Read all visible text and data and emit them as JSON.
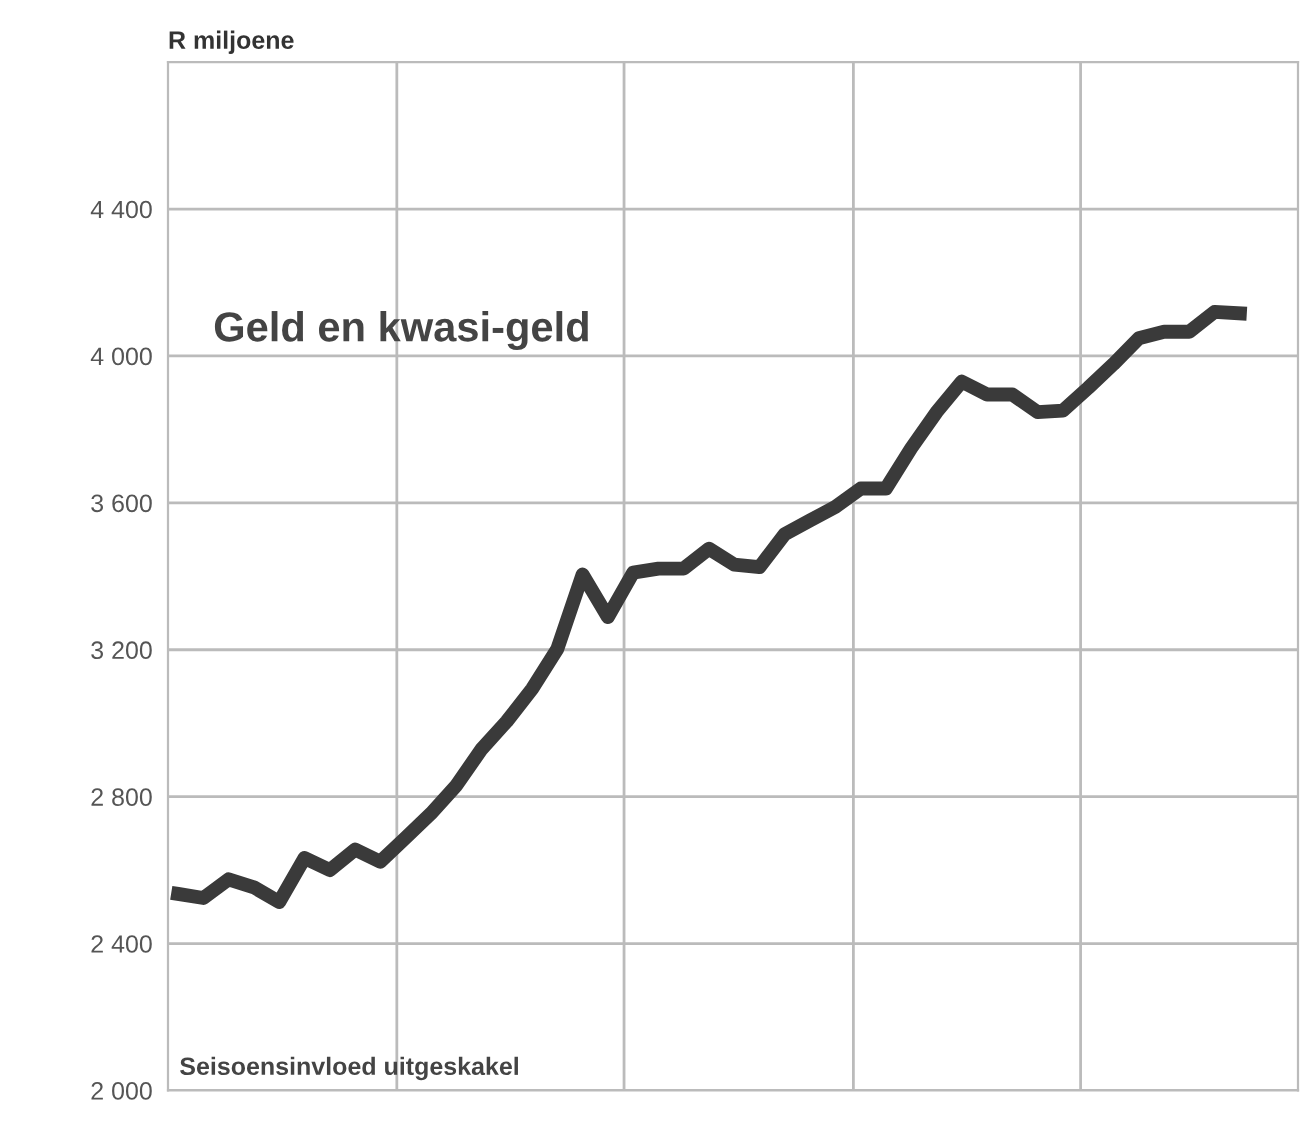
{
  "chart_data": {
    "type": "line",
    "ylabel": "R miljoene",
    "annotations": [
      "Geld en kwasi-geld",
      "Seisoensinvloed uitgeskakel"
    ],
    "categories": [
      null,
      null,
      null,
      null,
      null,
      null,
      null,
      null,
      null,
      null,
      null,
      null,
      null,
      null,
      null,
      null,
      null,
      null,
      null,
      null,
      null,
      null,
      null,
      null,
      null,
      null,
      null,
      null,
      null,
      null,
      null,
      null,
      null,
      null,
      null,
      null,
      null,
      null,
      null,
      null,
      null,
      null,
      null
    ],
    "series": [
      {
        "color": "#3a3a3a",
        "values": [
          2535,
          2524,
          2575,
          2553,
          2513,
          2633,
          2600,
          2656,
          2623,
          2688,
          2754,
          2830,
          2929,
          3005,
          3093,
          3202,
          3405,
          3289,
          3410,
          3421,
          3421,
          3475,
          3432,
          3425,
          3515,
          3552,
          3589,
          3639,
          3639,
          3749,
          3847,
          3930,
          3895,
          3895,
          3847,
          3851,
          3913,
          3978,
          4048,
          4066,
          4066,
          4120,
          4116
        ]
      }
    ],
    "ylim": [
      2000,
      4800
    ],
    "yticks": [
      {
        "value": 2000,
        "label": "2 000"
      },
      {
        "value": 2400,
        "label": "2 400"
      },
      {
        "value": 2800,
        "label": "2 800"
      },
      {
        "value": 3200,
        "label": "3 200"
      },
      {
        "value": 3600,
        "label": "3 600"
      },
      {
        "value": 4000,
        "label": "4 000"
      },
      {
        "value": 4400,
        "label": "4 400"
      }
    ],
    "grid": true,
    "line_style": "solid",
    "marker": "none"
  }
}
